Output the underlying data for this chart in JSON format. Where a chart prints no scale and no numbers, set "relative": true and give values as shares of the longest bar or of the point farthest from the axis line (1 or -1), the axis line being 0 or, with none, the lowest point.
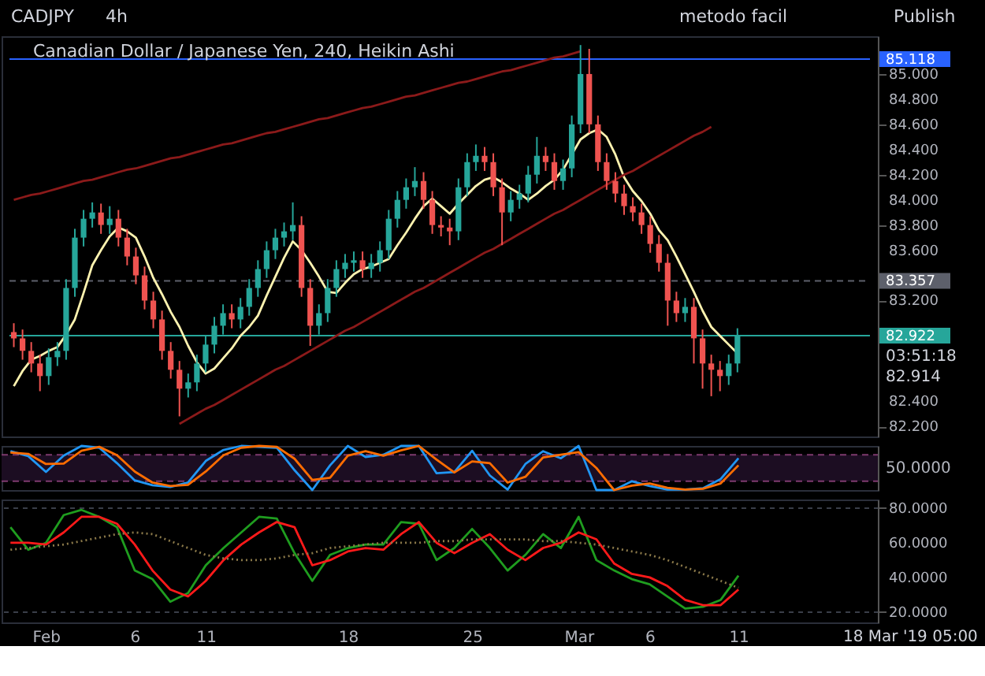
{
  "chart_data": [
    {
      "type": "candlestick",
      "title": "Canadian Dollar / Japanese Yen, 240, Heikin Ashi",
      "annotations": [
        "CADJPY",
        "4h",
        "metodo facil",
        "Publish",
        "03:51:18",
        "82.914"
      ],
      "categories": [
        null,
        null,
        null,
        null,
        null,
        null,
        null,
        null,
        null,
        null,
        null,
        null,
        null,
        null,
        null,
        null,
        null,
        null,
        null,
        null,
        null,
        null,
        null,
        null,
        null,
        null,
        null,
        null,
        null,
        null,
        null,
        null,
        null,
        null,
        null,
        null,
        null,
        null,
        null,
        null,
        null,
        null,
        null,
        null,
        null,
        null,
        null,
        null,
        null,
        null,
        null,
        null,
        null,
        null,
        null,
        null,
        null,
        null,
        null,
        null,
        null,
        null,
        null,
        null,
        null,
        null,
        null,
        null,
        null,
        null,
        null,
        null,
        null,
        null,
        null,
        null,
        null,
        null,
        null,
        null,
        null,
        null,
        null,
        null
      ],
      "ohlc": [
        [
          82.95,
          83.02,
          82.83,
          82.9
        ],
        [
          82.9,
          82.97,
          82.73,
          82.8
        ],
        [
          82.8,
          82.87,
          82.63,
          82.7
        ],
        [
          82.7,
          82.77,
          82.48,
          82.6
        ],
        [
          82.6,
          82.82,
          82.53,
          82.75
        ],
        [
          82.75,
          82.87,
          82.68,
          82.8
        ],
        [
          82.8,
          83.37,
          82.73,
          83.3
        ],
        [
          83.3,
          83.77,
          83.23,
          83.7
        ],
        [
          83.7,
          83.92,
          83.63,
          83.85
        ],
        [
          83.85,
          83.98,
          83.78,
          83.9
        ],
        [
          83.9,
          83.97,
          83.73,
          83.8
        ],
        [
          83.8,
          83.95,
          83.73,
          83.85
        ],
        [
          83.85,
          83.92,
          83.63,
          83.7
        ],
        [
          83.7,
          83.77,
          83.48,
          83.55
        ],
        [
          83.55,
          83.62,
          83.33,
          83.4
        ],
        [
          83.4,
          83.47,
          83.13,
          83.2
        ],
        [
          83.2,
          83.27,
          82.98,
          83.05
        ],
        [
          83.05,
          83.12,
          82.73,
          82.8
        ],
        [
          82.8,
          82.87,
          82.58,
          82.65
        ],
        [
          82.65,
          82.72,
          82.28,
          82.5
        ],
        [
          82.5,
          82.62,
          82.43,
          82.55
        ],
        [
          82.55,
          82.77,
          82.48,
          82.7
        ],
        [
          82.7,
          82.92,
          82.63,
          82.85
        ],
        [
          82.85,
          83.07,
          82.78,
          83.0
        ],
        [
          83.0,
          83.17,
          82.93,
          83.1
        ],
        [
          83.1,
          83.17,
          82.98,
          83.05
        ],
        [
          83.05,
          83.22,
          82.98,
          83.15
        ],
        [
          83.15,
          83.37,
          83.08,
          83.3
        ],
        [
          83.3,
          83.52,
          83.23,
          83.45
        ],
        [
          83.45,
          83.67,
          83.38,
          83.6
        ],
        [
          83.6,
          83.77,
          83.53,
          83.7
        ],
        [
          83.7,
          83.82,
          83.63,
          83.75
        ],
        [
          83.75,
          83.98,
          83.68,
          83.8
        ],
        [
          83.8,
          83.87,
          83.23,
          83.3
        ],
        [
          83.3,
          83.37,
          82.84,
          83.0
        ],
        [
          83.0,
          83.17,
          82.93,
          83.1
        ],
        [
          83.1,
          83.37,
          83.03,
          83.3
        ],
        [
          83.3,
          83.52,
          83.23,
          83.45
        ],
        [
          83.45,
          83.57,
          83.38,
          83.5
        ],
        [
          83.5,
          83.59,
          83.43,
          83.52
        ],
        [
          83.52,
          83.59,
          83.38,
          83.45
        ],
        [
          83.45,
          83.57,
          83.38,
          83.5
        ],
        [
          83.5,
          83.67,
          83.43,
          83.6
        ],
        [
          83.6,
          83.92,
          83.53,
          83.85
        ],
        [
          83.85,
          84.07,
          83.78,
          84.0
        ],
        [
          84.0,
          84.17,
          83.93,
          84.1
        ],
        [
          84.1,
          84.26,
          84.03,
          84.15
        ],
        [
          84.15,
          84.22,
          83.93,
          84.0
        ],
        [
          84.0,
          84.07,
          83.73,
          83.8
        ],
        [
          83.8,
          83.87,
          83.71,
          83.78
        ],
        [
          83.78,
          83.85,
          83.64,
          83.75
        ],
        [
          83.75,
          84.17,
          83.68,
          84.1
        ],
        [
          84.1,
          84.37,
          84.03,
          84.3
        ],
        [
          84.3,
          84.44,
          84.23,
          84.35
        ],
        [
          84.35,
          84.42,
          84.23,
          84.3
        ],
        [
          84.3,
          84.37,
          84.03,
          84.1
        ],
        [
          84.1,
          84.17,
          83.64,
          83.9
        ],
        [
          83.9,
          84.07,
          83.83,
          84.0
        ],
        [
          84.0,
          84.12,
          83.93,
          84.05
        ],
        [
          84.05,
          84.27,
          83.98,
          84.2
        ],
        [
          84.2,
          84.5,
          84.13,
          84.35
        ],
        [
          84.35,
          84.42,
          84.23,
          84.3
        ],
        [
          84.3,
          84.37,
          84.08,
          84.15
        ],
        [
          84.15,
          84.32,
          84.08,
          84.25
        ],
        [
          84.25,
          84.67,
          84.18,
          84.6
        ],
        [
          84.6,
          85.23,
          84.53,
          85.0
        ],
        [
          85.0,
          85.2,
          84.53,
          84.6
        ],
        [
          84.6,
          84.67,
          84.23,
          84.3
        ],
        [
          84.3,
          84.37,
          84.08,
          84.15
        ],
        [
          84.15,
          84.22,
          83.98,
          84.05
        ],
        [
          84.05,
          84.12,
          83.88,
          83.95
        ],
        [
          83.95,
          84.02,
          83.83,
          83.9
        ],
        [
          83.9,
          83.97,
          83.73,
          83.8
        ],
        [
          83.8,
          83.87,
          83.58,
          83.65
        ],
        [
          83.65,
          83.72,
          83.43,
          83.5
        ],
        [
          83.5,
          83.57,
          83.0,
          83.2
        ],
        [
          83.2,
          83.27,
          83.03,
          83.1
        ],
        [
          83.1,
          83.22,
          83.03,
          83.15
        ],
        [
          83.15,
          83.22,
          82.7,
          82.9
        ],
        [
          82.9,
          82.97,
          82.5,
          82.7
        ],
        [
          82.7,
          82.77,
          82.44,
          82.65
        ],
        [
          82.65,
          82.72,
          82.48,
          82.6
        ],
        [
          82.6,
          82.77,
          82.53,
          82.7
        ],
        [
          82.7,
          82.98,
          82.63,
          82.92
        ]
      ],
      "colors": [
        "#ef5350",
        "#ef5350",
        "#ef5350",
        "#ef5350",
        "#26a69a",
        "#26a69a",
        "#26a69a",
        "#26a69a",
        "#26a69a",
        "#26a69a",
        "#ef5350",
        "#26a69a",
        "#ef5350",
        "#ef5350",
        "#ef5350",
        "#ef5350",
        "#ef5350",
        "#ef5350",
        "#ef5350",
        "#ef5350",
        "#26a69a",
        "#26a69a",
        "#26a69a",
        "#26a69a",
        "#26a69a",
        "#ef5350",
        "#26a69a",
        "#26a69a",
        "#26a69a",
        "#26a69a",
        "#26a69a",
        "#26a69a",
        "#26a69a",
        "#ef5350",
        "#ef5350",
        "#26a69a",
        "#26a69a",
        "#26a69a",
        "#26a69a",
        "#26a69a",
        "#ef5350",
        "#26a69a",
        "#26a69a",
        "#26a69a",
        "#26a69a",
        "#26a69a",
        "#26a69a",
        "#ef5350",
        "#ef5350",
        "#ef5350",
        "#ef5350",
        "#26a69a",
        "#26a69a",
        "#26a69a",
        "#ef5350",
        "#ef5350",
        "#ef5350",
        "#26a69a",
        "#26a69a",
        "#26a69a",
        "#26a69a",
        "#ef5350",
        "#ef5350",
        "#26a69a",
        "#26a69a",
        "#26a69a",
        "#ef5350",
        "#ef5350",
        "#ef5350",
        "#ef5350",
        "#ef5350",
        "#ef5350",
        "#ef5350",
        "#ef5350",
        "#ef5350",
        "#ef5350",
        "#ef5350",
        "#26a69a",
        "#ef5350",
        "#ef5350",
        "#ef5350",
        "#ef5350",
        "#26a69a",
        "#26a69a"
      ],
      "series": [
        {
          "type": "line",
          "color": "#fff3b0",
          "values": [
            82.52,
            82.64,
            82.73,
            82.76,
            82.8,
            82.83,
            82.93,
            83.05,
            83.26,
            83.48,
            83.6,
            83.71,
            83.78,
            83.75,
            83.7,
            83.55,
            83.38,
            83.25,
            83.11,
            82.99,
            82.84,
            82.71,
            82.62,
            82.66,
            82.74,
            82.82,
            82.92,
            82.99,
            83.08,
            83.24,
            83.39,
            83.54,
            83.67,
            83.6,
            83.5,
            83.39,
            83.27,
            83.26,
            83.34,
            83.41,
            83.45,
            83.47,
            83.5,
            83.53,
            83.64,
            83.74,
            83.85,
            83.95,
            84.01,
            83.95,
            83.89,
            83.97,
            84.04,
            84.11,
            84.16,
            84.18,
            84.14,
            84.09,
            84.05,
            84.0,
            84.05,
            84.11,
            84.16,
            84.24,
            84.36,
            84.48,
            84.53,
            84.56,
            84.5,
            84.36,
            84.18,
            84.07,
            83.99,
            83.89,
            83.76,
            83.68,
            83.55,
            83.41,
            83.27,
            83.12,
            82.99,
            82.92,
            82.85,
            82.78
          ]
        },
        {
          "type": "line",
          "color": "#8b1a1a",
          "values": [
            84.0,
            84.02,
            84.04,
            84.05,
            84.07,
            84.09,
            84.11,
            84.13,
            84.15,
            84.16,
            84.18,
            84.2,
            84.22,
            84.24,
            84.25,
            84.27,
            84.29,
            84.31,
            84.33,
            84.34,
            84.36,
            84.38,
            84.4,
            84.42,
            84.44,
            84.45,
            84.47,
            84.49,
            84.51,
            84.53,
            84.54,
            84.56,
            84.58,
            84.6,
            84.62,
            84.64,
            84.65,
            84.67,
            84.69,
            84.71,
            84.73,
            84.74,
            84.76,
            84.78,
            84.8,
            84.82,
            84.83,
            84.85,
            84.87,
            84.89,
            84.91,
            84.93,
            84.94,
            84.96,
            84.98,
            85.0,
            85.02,
            85.03,
            85.05,
            85.07,
            85.09,
            85.11,
            85.13,
            85.14,
            85.16,
            85.18,
            null,
            null,
            null,
            null,
            null,
            null,
            null,
            null,
            null,
            null,
            null,
            null,
            null,
            null,
            null,
            null,
            null,
            null
          ]
        },
        {
          "type": "line",
          "color": "#8b1a1a",
          "values": [
            null,
            null,
            null,
            null,
            null,
            null,
            null,
            null,
            null,
            null,
            null,
            null,
            null,
            null,
            null,
            null,
            null,
            null,
            null,
            82.22,
            82.26,
            82.3,
            82.34,
            82.37,
            82.41,
            82.45,
            82.49,
            82.53,
            82.57,
            82.61,
            82.65,
            82.68,
            82.72,
            82.76,
            82.8,
            82.84,
            82.88,
            82.92,
            82.96,
            82.99,
            83.03,
            83.07,
            83.11,
            83.15,
            83.19,
            83.23,
            83.27,
            83.3,
            83.34,
            83.38,
            83.42,
            83.46,
            83.5,
            83.54,
            83.58,
            83.61,
            83.65,
            83.69,
            83.73,
            83.77,
            83.81,
            83.85,
            83.89,
            83.92,
            83.96,
            84.0,
            84.04,
            84.08,
            84.12,
            84.16,
            84.2,
            84.23,
            84.27,
            84.31,
            84.35,
            84.39,
            84.43,
            84.47,
            84.51,
            84.54,
            84.58,
            null,
            null,
            null
          ]
        }
      ],
      "ref_lines": [
        {
          "axis": "y",
          "value": 85.118,
          "label": "85.118",
          "color": "#2962ff",
          "line_style": "solid"
        },
        {
          "axis": "y",
          "value": 83.357,
          "label": "83.357",
          "color": "#5d606b",
          "line_style": "dashed"
        },
        {
          "axis": "y",
          "value": 82.922,
          "label": "82.922",
          "color": "#26a69a",
          "line_style": "solid"
        }
      ],
      "ylim": [
        82.12,
        85.3
      ],
      "yticks": [
        {
          "value": 82.2,
          "label": "82.200"
        },
        {
          "value": 82.4,
          "label": "82.400"
        },
        {
          "value": 83.2,
          "label": "83.200"
        },
        {
          "value": 83.6,
          "label": "83.600"
        },
        {
          "value": 83.8,
          "label": "83.800"
        },
        {
          "value": 84.0,
          "label": "84.000"
        },
        {
          "value": 84.2,
          "label": "84.200"
        },
        {
          "value": 84.4,
          "label": "84.400"
        },
        {
          "value": 84.6,
          "label": "84.600"
        },
        {
          "value": 84.8,
          "label": "84.800"
        },
        {
          "value": 85.0,
          "label": "85.000"
        }
      ],
      "tick_labels": "y"
    },
    {
      "type": "line",
      "relative": true,
      "annotations": [
        "50.0000"
      ],
      "categories": [
        null,
        null,
        null,
        null,
        null,
        null,
        null,
        null,
        null,
        null,
        null,
        null,
        null,
        null,
        null,
        null,
        null,
        null,
        null,
        null,
        null,
        null,
        null,
        null,
        null,
        null,
        null,
        null,
        null,
        null,
        null,
        null,
        null,
        null,
        null,
        null,
        null,
        null,
        null,
        null,
        null,
        null
      ],
      "series": [
        {
          "color": "#2196f3",
          "values": [
            0.88,
            0.77,
            0.41,
            0.78,
            1,
            0.96,
            0.61,
            0.22,
            0.11,
            0.07,
            0.17,
            0.66,
            0.91,
            1,
            null,
            0.96,
            0.45,
            0,
            0.56,
            1,
            0.75,
            0.8,
            1,
            1,
            0.38,
            0.41,
            0.89,
            0.33,
            0.01,
            0.59,
            0.88,
            0.72,
            1,
            0,
            0,
            0.2,
            0.09,
            0.01,
            0.01,
            0.04,
            0.25,
            0.72
          ]
        },
        {
          "color": "#ff6d00",
          "values": [
            0.85,
            0.82,
            0.59,
            0.6,
            0.89,
            0.98,
            0.79,
            0.42,
            0.17,
            0.09,
            0.12,
            0.42,
            0.79,
            0.96,
            1,
            0.98,
            0.71,
            0.23,
            0.28,
            0.78,
            0.88,
            0.78,
            0.9,
            1,
            0.69,
            0.4,
            0.65,
            0.61,
            0.17,
            0.3,
            0.74,
            0.8,
            0.86,
            0.5,
            0,
            0.1,
            0.15,
            0.05,
            0.01,
            0.03,
            0.15,
            0.56
          ]
        }
      ],
      "bands": [
        {
          "axis": "y",
          "from": 0.2,
          "to": 0.8,
          "color": "#1c0d22"
        }
      ],
      "ref_lines": [
        {
          "axis": "y",
          "value": 0.8,
          "color": "#7e3a6e",
          "line_style": "dashed"
        },
        {
          "axis": "y",
          "value": 0.2,
          "color": "#7e3a6e",
          "line_style": "dashed"
        }
      ],
      "tick_labels": false
    },
    {
      "type": "line",
      "annotations": [
        {
          "text": "18 Mar '19  05:00"
        }
      ],
      "categories": [
        null,
        null,
        "Feb",
        null,
        null,
        null,
        null,
        "6",
        null,
        null,
        null,
        "11",
        null,
        null,
        null,
        null,
        null,
        null,
        null,
        "18",
        null,
        null,
        null,
        null,
        null,
        null,
        "25",
        null,
        null,
        null,
        null,
        null,
        "Mar",
        null,
        null,
        null,
        "6",
        null,
        null,
        null,
        null,
        "11"
      ],
      "series": [
        {
          "color": "#1f9d1f",
          "values": [
            69,
            56,
            60,
            76,
            79,
            75,
            69,
            44,
            39,
            26,
            31,
            47,
            57,
            66,
            75,
            74,
            54,
            38,
            53,
            57,
            59,
            59,
            72,
            71,
            50,
            57,
            68,
            57,
            44,
            53,
            65,
            57,
            75,
            50,
            44,
            39,
            36,
            29,
            22,
            23,
            27,
            41
          ]
        },
        {
          "color": "#ff1a1a",
          "values": [
            60,
            60,
            59,
            66,
            75,
            75,
            71,
            59,
            44,
            33,
            29,
            38,
            50,
            59,
            66,
            72,
            69,
            47,
            50,
            55,
            57,
            56,
            65,
            72,
            60,
            54,
            60,
            65,
            56,
            50,
            57,
            60,
            66,
            62,
            48,
            42,
            40,
            35,
            27,
            24,
            24,
            33
          ]
        },
        {
          "color": "#8c7a4a",
          "line_style": "dotted",
          "values": [
            56,
            57,
            58,
            59,
            61,
            63,
            65,
            66,
            65,
            61,
            57,
            53,
            51,
            50,
            50,
            51,
            53,
            54,
            57,
            58,
            59,
            60,
            60,
            60,
            61,
            61,
            62,
            62,
            62,
            62,
            61,
            61,
            60,
            59,
            57,
            55,
            53,
            50,
            46,
            42,
            38,
            34
          ]
        }
      ],
      "ylim": [
        14,
        85
      ],
      "yticks": [
        {
          "value": 20,
          "label": "20.0000"
        },
        {
          "value": 40,
          "label": "40.0000"
        },
        {
          "value": 60,
          "label": "60.0000"
        },
        {
          "value": 80,
          "label": "80.0000"
        }
      ],
      "grid": "y"
    }
  ]
}
